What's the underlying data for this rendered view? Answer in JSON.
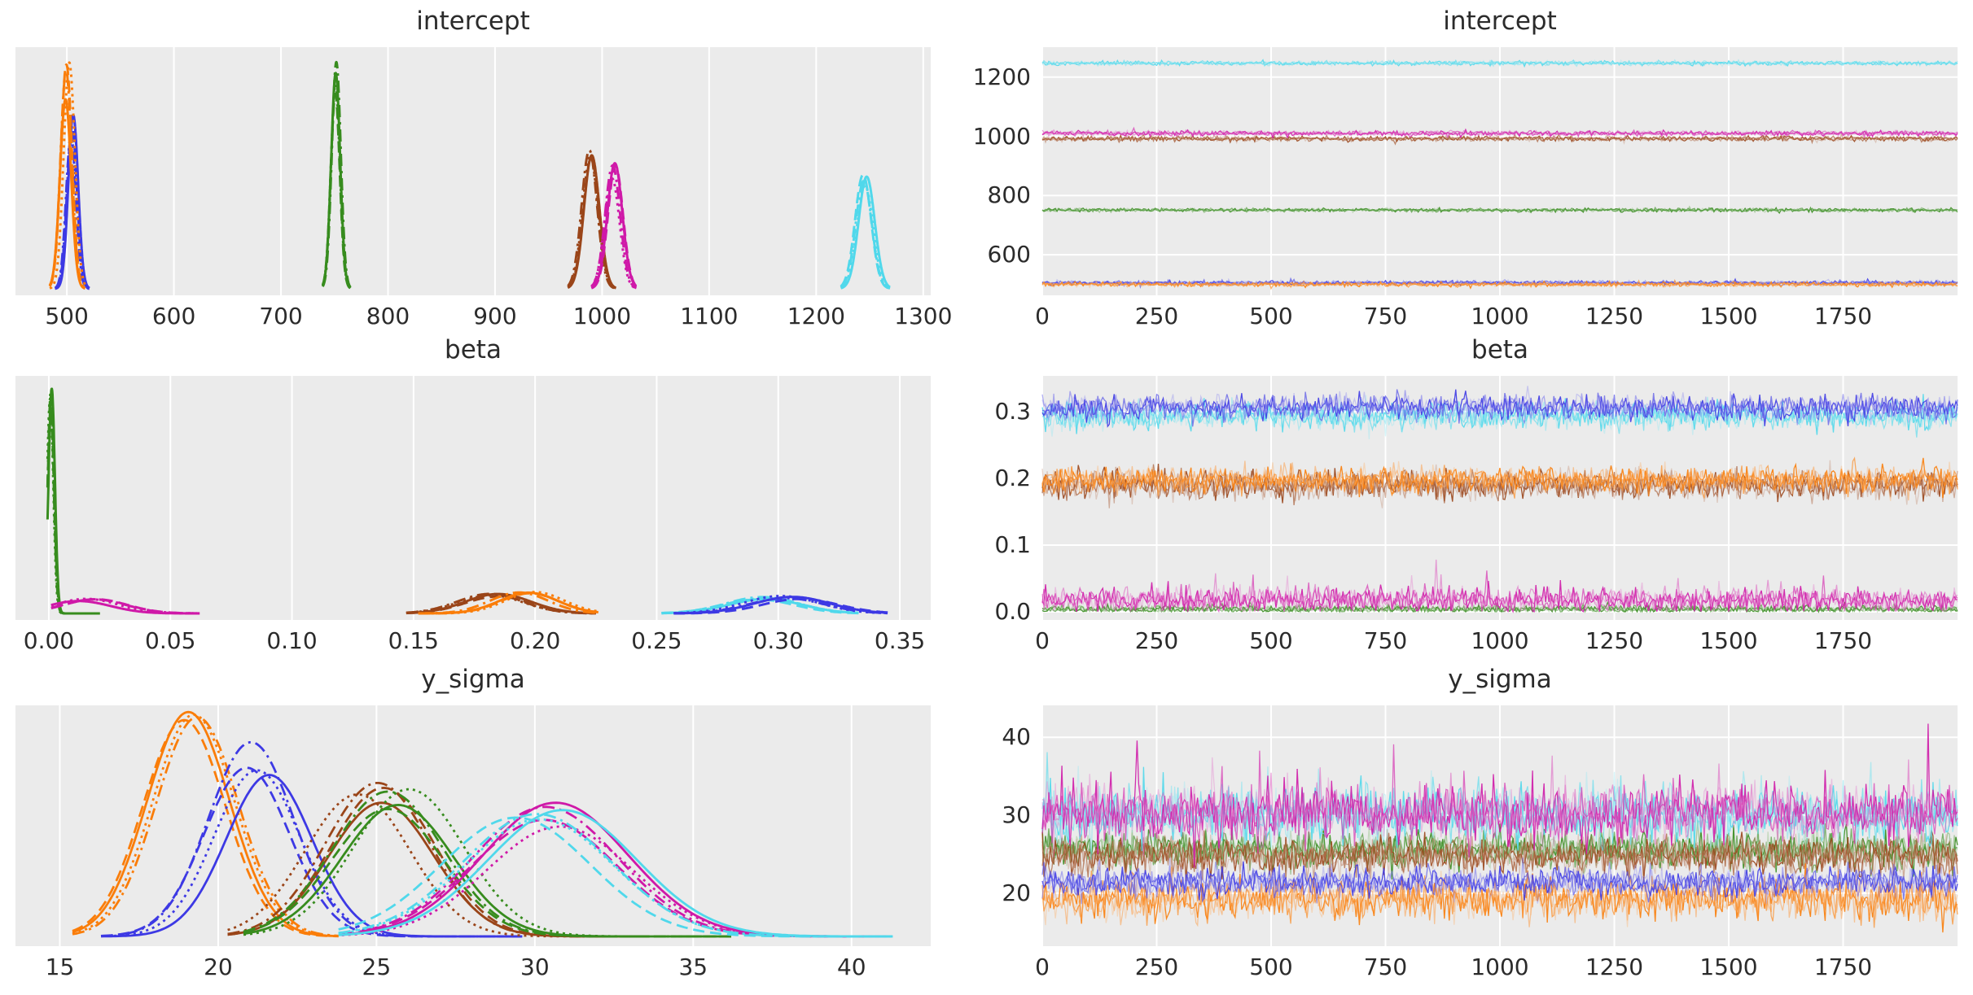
{
  "figure": {
    "background": "#ffffff",
    "panel_background": "#ebebeb",
    "grid_color": "#ffffff",
    "text_color": "#2b2b2b",
    "colors": {
      "blue": "#3d39e4",
      "orange": "#fa7d09",
      "green": "#378c1e",
      "magenta": "#cf19a8",
      "brown": "#9a4519",
      "cyan": "#50d8eb"
    },
    "chains_per_group": 4,
    "line_styles": [
      "solid",
      "dashdot",
      "dashed",
      "dotted"
    ]
  },
  "chart_data": [
    {
      "id": "intercept-kde",
      "type": "kde",
      "title": "intercept",
      "xlabel": "",
      "ylabel": "",
      "grid": true,
      "baseline_offset": 8,
      "line_width": 3,
      "x": {
        "min": 452,
        "max": 1307,
        "ticks": [
          {
            "v": 500,
            "label": "500"
          },
          {
            "v": 600,
            "label": "600"
          },
          {
            "v": 700,
            "label": "700"
          },
          {
            "v": 800,
            "label": "800"
          },
          {
            "v": 900,
            "label": "900"
          },
          {
            "v": 1000,
            "label": "1000"
          },
          {
            "v": 1100,
            "label": "1100"
          },
          {
            "v": 1200,
            "label": "1200"
          },
          {
            "v": 1300,
            "label": "1300"
          }
        ]
      },
      "series": [
        {
          "name": "group-blue",
          "color": "blue",
          "mean": 505,
          "sd": 4.6,
          "peak": 0.7,
          "ext": [
            489,
            521
          ]
        },
        {
          "name": "group-orange",
          "color": "orange",
          "mean": 500.5,
          "sd": 5.2,
          "peak": 0.88,
          "ext": [
            484,
            517
          ]
        },
        {
          "name": "group-green",
          "color": "green",
          "mean": 752,
          "sd": 4.2,
          "peak": 0.91,
          "ext": [
            739,
            765
          ]
        },
        {
          "name": "group-brown",
          "color": "brown",
          "mean": 990,
          "sd": 7.2,
          "peak": 0.58,
          "ext": [
            968,
            1013
          ]
        },
        {
          "name": "group-magenta",
          "color": "magenta",
          "mean": 1011,
          "sd": 7.0,
          "peak": 0.52,
          "ext": [
            990,
            1032
          ]
        },
        {
          "name": "group-cyan",
          "color": "cyan",
          "mean": 1246,
          "sd": 7.5,
          "peak": 0.5,
          "ext": [
            1223,
            1269
          ]
        }
      ]
    },
    {
      "id": "intercept-trace",
      "type": "trace",
      "title": "intercept",
      "grid": true,
      "x": {
        "min": 0,
        "max": 2000,
        "ticks": [
          {
            "v": 0,
            "label": "0"
          },
          {
            "v": 250,
            "label": "250"
          },
          {
            "v": 500,
            "label": "500"
          },
          {
            "v": 750,
            "label": "750"
          },
          {
            "v": 1000,
            "label": "1000"
          },
          {
            "v": 1250,
            "label": "1250"
          },
          {
            "v": 1500,
            "label": "1500"
          },
          {
            "v": 1750,
            "label": "1750"
          }
        ]
      },
      "y": {
        "min": 463,
        "max": 1301,
        "ticks": [
          {
            "v": 600,
            "label": "600"
          },
          {
            "v": 800,
            "label": "800"
          },
          {
            "v": 1000,
            "label": "1000"
          },
          {
            "v": 1200,
            "label": "1200"
          }
        ]
      },
      "series": [
        {
          "name": "group-blue",
          "color": "blue",
          "mean": 505,
          "amp": 6,
          "skew": 0
        },
        {
          "name": "group-orange",
          "color": "orange",
          "mean": 500,
          "amp": 6,
          "skew": 0
        },
        {
          "name": "group-green",
          "color": "green",
          "mean": 751,
          "amp": 5,
          "skew": 0
        },
        {
          "name": "group-brown",
          "color": "brown",
          "mean": 992,
          "amp": 7,
          "skew": 0
        },
        {
          "name": "group-magenta",
          "color": "magenta",
          "mean": 1010,
          "amp": 7,
          "skew": 0
        },
        {
          "name": "group-cyan",
          "color": "cyan",
          "mean": 1247,
          "amp": 6,
          "skew": 0
        }
      ]
    },
    {
      "id": "beta-kde",
      "type": "kde",
      "title": "beta",
      "xlabel": "",
      "ylabel": "",
      "grid": true,
      "baseline_offset": 8,
      "line_width": 3,
      "x": {
        "min": -0.0137,
        "max": 0.3627,
        "ticks": [
          {
            "v": 0.0,
            "label": "0.00"
          },
          {
            "v": 0.05,
            "label": "0.05"
          },
          {
            "v": 0.1,
            "label": "0.10"
          },
          {
            "v": 0.15,
            "label": "0.15"
          },
          {
            "v": 0.2,
            "label": "0.20"
          },
          {
            "v": 0.25,
            "label": "0.25"
          },
          {
            "v": 0.3,
            "label": "0.30"
          },
          {
            "v": 0.35,
            "label": "0.35"
          }
        ]
      },
      "series": [
        {
          "name": "group-green",
          "color": "green",
          "mean": 0.0008,
          "sd": 0.0013,
          "peak": 0.9,
          "ext": [
            -0.0005,
            0.021
          ]
        },
        {
          "name": "group-magenta",
          "color": "magenta",
          "mean": 0.016,
          "sd": 0.013,
          "peak": 0.058,
          "ext": [
            0.001,
            0.062
          ]
        },
        {
          "name": "group-brown",
          "color": "brown",
          "mean": 0.185,
          "sd": 0.0135,
          "peak": 0.082,
          "ext": [
            0.147,
            0.225
          ]
        },
        {
          "name": "group-orange",
          "color": "orange",
          "mean": 0.197,
          "sd": 0.012,
          "peak": 0.088,
          "ext": [
            0.152,
            0.226
          ]
        },
        {
          "name": "group-cyan",
          "color": "cyan",
          "mean": 0.293,
          "sd": 0.015,
          "peak": 0.065,
          "ext": [
            0.252,
            0.333
          ]
        },
        {
          "name": "group-blue",
          "color": "blue",
          "mean": 0.304,
          "sd": 0.0155,
          "peak": 0.072,
          "ext": [
            0.257,
            0.345
          ]
        }
      ]
    },
    {
      "id": "beta-trace",
      "type": "trace",
      "title": "beta",
      "grid": true,
      "x": {
        "min": 0,
        "max": 2000,
        "ticks": [
          {
            "v": 0,
            "label": "0"
          },
          {
            "v": 250,
            "label": "250"
          },
          {
            "v": 500,
            "label": "500"
          },
          {
            "v": 750,
            "label": "750"
          },
          {
            "v": 1000,
            "label": "1000"
          },
          {
            "v": 1250,
            "label": "1250"
          },
          {
            "v": 1500,
            "label": "1500"
          },
          {
            "v": 1750,
            "label": "1750"
          }
        ]
      },
      "y": {
        "min": -0.0122,
        "max": 0.3537,
        "ticks": [
          {
            "v": 0.0,
            "label": "0.0"
          },
          {
            "v": 0.1,
            "label": "0.1"
          },
          {
            "v": 0.2,
            "label": "0.2"
          },
          {
            "v": 0.3,
            "label": "0.3"
          }
        ]
      },
      "series": [
        {
          "name": "group-green",
          "color": "green",
          "mean": 0.004,
          "amp": 0.005,
          "skew": 0,
          "clip_lo": 0
        },
        {
          "name": "group-magenta",
          "color": "magenta",
          "mean": 0.017,
          "amp": 0.014,
          "skew": 1,
          "clip_lo": 0
        },
        {
          "name": "group-brown",
          "color": "brown",
          "mean": 0.19,
          "amp": 0.018,
          "skew": 0
        },
        {
          "name": "group-orange",
          "color": "orange",
          "mean": 0.198,
          "amp": 0.016,
          "skew": 0
        },
        {
          "name": "group-cyan",
          "color": "cyan",
          "mean": 0.294,
          "amp": 0.016,
          "skew": 0
        },
        {
          "name": "group-blue",
          "color": "blue",
          "mean": 0.306,
          "amp": 0.015,
          "skew": 0
        }
      ]
    },
    {
      "id": "y_sigma-kde",
      "type": "kde",
      "title": "y_sigma",
      "xlabel": "",
      "ylabel": "",
      "grid": true,
      "baseline_offset": 12,
      "line_width": 2.8,
      "x": {
        "min": 13.6,
        "max": 42.5,
        "ticks": [
          {
            "v": 15,
            "label": "15"
          },
          {
            "v": 20,
            "label": "20"
          },
          {
            "v": 25,
            "label": "25"
          },
          {
            "v": 30,
            "label": "30"
          },
          {
            "v": 35,
            "label": "35"
          },
          {
            "v": 40,
            "label": "40"
          }
        ]
      },
      "series": [
        {
          "name": "group-orange",
          "color": "orange",
          "mean": 19.35,
          "sd": 1.3,
          "peak": 0.93,
          "ext": [
            15.4,
            23.8
          ]
        },
        {
          "name": "group-blue",
          "color": "blue",
          "mean": 21.3,
          "sd": 1.35,
          "peak": 0.8,
          "ext": [
            16.3,
            29.6
          ]
        },
        {
          "name": "group-brown",
          "color": "brown",
          "mean": 24.8,
          "sd": 1.65,
          "peak": 0.64,
          "ext": [
            20.3,
            33.6
          ]
        },
        {
          "name": "group-green",
          "color": "green",
          "mean": 25.7,
          "sd": 1.75,
          "peak": 0.64,
          "ext": [
            20.8,
            36.2
          ]
        },
        {
          "name": "group-magenta",
          "color": "magenta",
          "mean": 30.3,
          "sd": 2.3,
          "peak": 0.55,
          "ext": [
            23.9,
            41.1
          ]
        },
        {
          "name": "group-cyan",
          "color": "cyan",
          "mean": 30.1,
          "sd": 2.35,
          "peak": 0.52,
          "ext": [
            23.8,
            41.3
          ]
        }
      ]
    },
    {
      "id": "y_sigma-trace",
      "type": "trace",
      "title": "y_sigma",
      "grid": true,
      "x": {
        "min": 0,
        "max": 2000,
        "ticks": [
          {
            "v": 0,
            "label": "0"
          },
          {
            "v": 250,
            "label": "250"
          },
          {
            "v": 500,
            "label": "500"
          },
          {
            "v": 750,
            "label": "750"
          },
          {
            "v": 1000,
            "label": "1000"
          },
          {
            "v": 1250,
            "label": "1250"
          },
          {
            "v": 1500,
            "label": "1500"
          },
          {
            "v": 1750,
            "label": "1750"
          }
        ]
      },
      "y": {
        "min": 13.2,
        "max": 44.1,
        "ticks": [
          {
            "v": 20,
            "label": "20"
          },
          {
            "v": 30,
            "label": "30"
          },
          {
            "v": 40,
            "label": "40"
          }
        ]
      },
      "series": [
        {
          "name": "group-green",
          "color": "green",
          "mean": 25.6,
          "amp": 1.9,
          "skew": 0
        },
        {
          "name": "group-brown",
          "color": "brown",
          "mean": 24.8,
          "amp": 1.9,
          "skew": 0
        },
        {
          "name": "group-orange",
          "color": "orange",
          "mean": 19.3,
          "amp": 2.1,
          "skew": 0
        },
        {
          "name": "group-blue",
          "color": "blue",
          "mean": 21.4,
          "amp": 1.5,
          "skew": 0
        },
        {
          "name": "group-cyan",
          "color": "cyan",
          "mean": 30.0,
          "amp": 2.7,
          "skew": 1
        },
        {
          "name": "group-magenta",
          "color": "magenta",
          "mean": 30.2,
          "amp": 2.8,
          "skew": 1
        }
      ]
    }
  ]
}
